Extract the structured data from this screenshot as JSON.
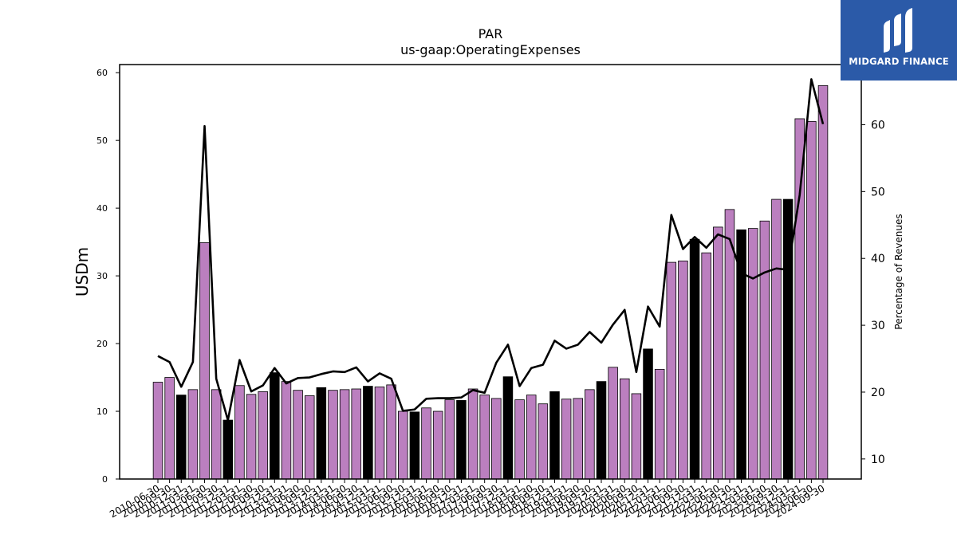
{
  "brand": {
    "name": "MIDGARD FINANCE",
    "bg_color": "#2b5aa8"
  },
  "chart_data": {
    "type": "bar",
    "title": "PAR",
    "subtitle": "us-gaap:OperatingExpenses",
    "ylabel": "USDm",
    "y2label": "Percentage of Revenues",
    "ylim": [
      0,
      61.2
    ],
    "y2lim": [
      7,
      69
    ],
    "yticks": [
      0,
      10,
      20,
      30,
      40,
      50,
      60
    ],
    "y2ticks": [
      10,
      20,
      30,
      40,
      50,
      60
    ],
    "bar_color": "#bb7fbf",
    "highlight_color": "#000000",
    "line_color": "#000000",
    "categories": [
      "2010-06-30",
      "2010-09-30",
      "2010-12-31",
      "2011-03-31",
      "2011-06-30",
      "2011-09-30",
      "2011-12-31",
      "2012-03-31",
      "2012-06-30",
      "2012-09-30",
      "2012-12-31",
      "2013-03-31",
      "2013-06-30",
      "2013-09-30",
      "2013-12-31",
      "2014-03-31",
      "2014-06-30",
      "2014-09-30",
      "2014-12-31",
      "2015-03-31",
      "2015-06-30",
      "2015-09-30",
      "2015-12-31",
      "2016-03-31",
      "2016-06-30",
      "2016-09-30",
      "2016-12-31",
      "2017-03-31",
      "2017-06-30",
      "2017-09-30",
      "2017-12-31",
      "2018-03-31",
      "2018-06-30",
      "2018-09-30",
      "2018-12-31",
      "2019-03-31",
      "2019-06-30",
      "2019-09-30",
      "2019-12-31",
      "2020-03-31",
      "2020-06-30",
      "2020-09-30",
      "2020-12-31",
      "2021-03-31",
      "2021-06-30",
      "2021-09-30",
      "2021-12-31",
      "2022-03-31",
      "2022-06-30",
      "2022-09-30",
      "2022-12-31",
      "2023-03-31",
      "2023-06-30",
      "2023-09-30",
      "2023-12-31",
      "2024-03-31",
      "2024-06-30",
      "2024-09-30"
    ],
    "series": [
      {
        "type": "bar",
        "values": [
          14.3,
          15.0,
          12.4,
          13.2,
          34.9,
          13.2,
          8.7,
          13.8,
          12.5,
          12.9,
          15.7,
          14.4,
          13.1,
          12.3,
          13.5,
          13.1,
          13.2,
          13.3,
          13.7,
          13.6,
          13.9,
          10.0,
          9.9,
          10.5,
          10.0,
          11.7,
          11.6,
          13.3,
          12.4,
          11.9,
          15.1,
          11.7,
          12.4,
          11.1,
          12.9,
          11.8,
          11.9,
          13.2,
          14.4,
          16.5,
          14.8,
          12.6,
          19.2,
          16.2,
          32.0,
          32.2,
          35.4,
          33.4,
          37.2,
          39.8,
          36.8,
          37.0,
          38.1,
          41.3,
          41.3,
          53.2,
          52.8,
          58.1
        ],
        "highlight": [
          2,
          6,
          10,
          14,
          18,
          22,
          26,
          30,
          34,
          38,
          42,
          46,
          50,
          54
        ]
      },
      {
        "type": "line",
        "axis": "right",
        "values": [
          25.4,
          24.5,
          20.8,
          24.5,
          59.8,
          22.0,
          15.8,
          24.8,
          20.1,
          21.0,
          23.6,
          21.3,
          22.1,
          22.2,
          22.7,
          23.1,
          23.0,
          23.7,
          21.6,
          22.8,
          22.0,
          17.2,
          17.4,
          19.0,
          19.1,
          19.1,
          19.2,
          20.3,
          19.9,
          24.4,
          27.1,
          20.9,
          23.6,
          24.1,
          27.7,
          26.5,
          27.1,
          29.0,
          27.4,
          30.1,
          32.3,
          23.0,
          32.8,
          29.8,
          46.5,
          41.4,
          43.2,
          41.6,
          43.6,
          42.9,
          37.8,
          37.0,
          37.9,
          38.5,
          38.3,
          49.5,
          66.8,
          60.1
        ]
      }
    ],
    "grid": false,
    "legend": "none"
  }
}
